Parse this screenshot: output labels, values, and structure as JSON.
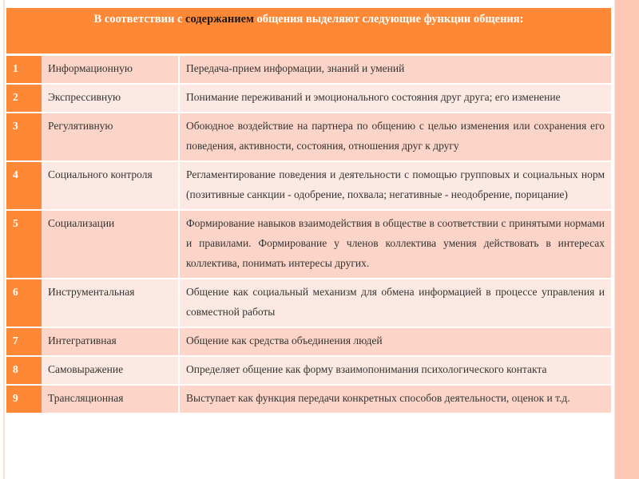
{
  "header": {
    "before": "В соответствии с",
    "bold": "содержанием",
    "after": "общения выделяют следующие функции общения:"
  },
  "rows": [
    {
      "num": "1",
      "name": "Информационную",
      "desc": "Передача-прием информации, знаний и умений"
    },
    {
      "num": "2",
      "name": "Экспрессивную",
      "desc": "Понимание переживаний и эмоционального состояния друг друга; его изменение"
    },
    {
      "num": "3",
      "name": "Регулятивную",
      "desc": "Обоюдное воздействие на партнера по общению с целью изменения или сохранения его поведения, активности, состояния, отношения друг к другу"
    },
    {
      "num": "4",
      "name": "Социального контроля",
      "desc": "Регламентирование поведения и деятельности с помощью групповых и социальных норм (позитивные санкции - одобрение, похвала; негативные - неодобрение, порицание)"
    },
    {
      "num": "5",
      "name": "Социализации",
      "desc": "Формирование навыков взаимодействия в обществе в соответствии с принятыми нормами и правилами. Формирование у членов коллектива умения действовать в интересах коллектива, понимать интересы других."
    },
    {
      "num": "6",
      "name": "Инструментальная",
      "desc": "Общение как социальный механизм для обмена информацией в процессе управления и совместной работы"
    },
    {
      "num": "7",
      "name": "Интегративная",
      "desc": "Общение как средства объединения людей"
    },
    {
      "num": "8",
      "name": "Самовыражение",
      "desc": "Определяет общение как форму взаимопонимания психологического контакта"
    },
    {
      "num": "9",
      "name": "Трансляционная",
      "desc": "Выступает как функция передачи конкретных способов деятельности, оценок и т.д."
    }
  ],
  "colors": {
    "accent": "#fd8936",
    "row_dark": "#fcd5c8",
    "row_light": "#fde9e3"
  }
}
